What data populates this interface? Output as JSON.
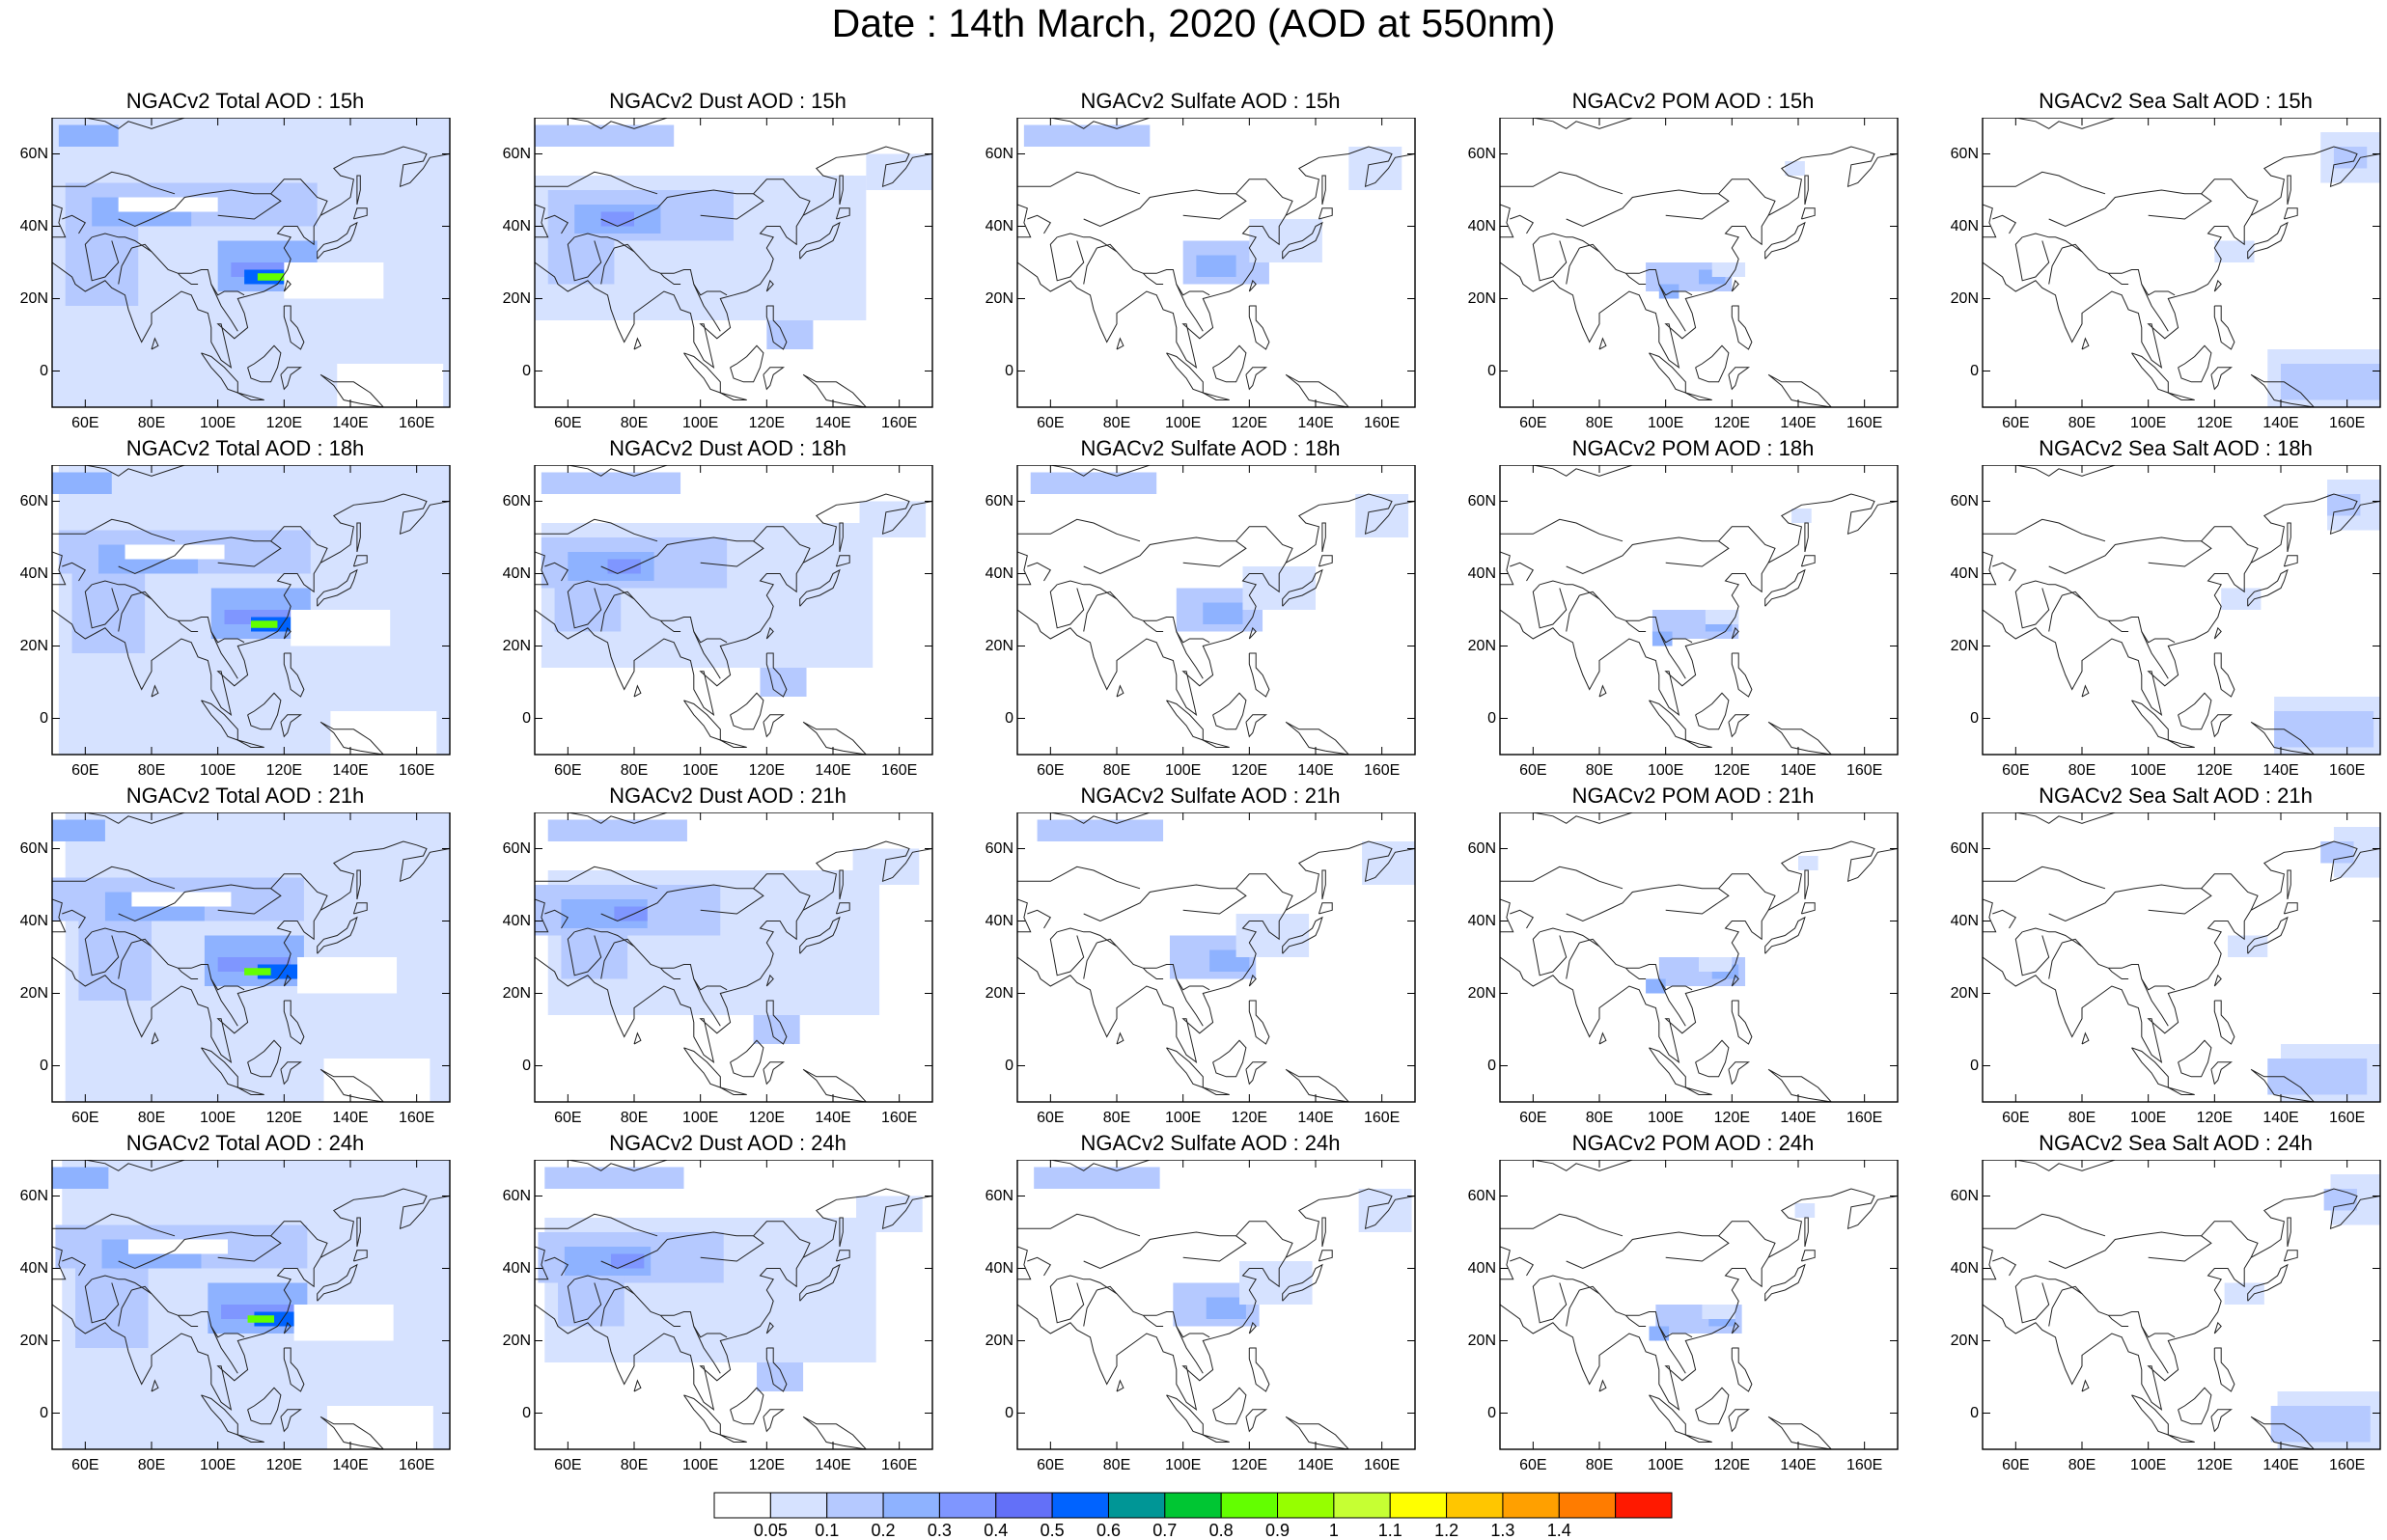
{
  "title": "Date : 14th March, 2020 (AOD at 550nm)",
  "panels": [
    {
      "title": "NGACv2 Total AOD : 15h",
      "species": "total"
    },
    {
      "title": "NGACv2 Dust AOD : 15h",
      "species": "dust"
    },
    {
      "title": "NGACv2 Sulfate AOD : 15h",
      "species": "sulfate"
    },
    {
      "title": "NGACv2 POM AOD : 15h",
      "species": "pom"
    },
    {
      "title": "NGACv2 Sea Salt AOD : 15h",
      "species": "seasalt"
    },
    {
      "title": "NGACv2 Total AOD : 18h",
      "species": "total"
    },
    {
      "title": "NGACv2 Dust AOD : 18h",
      "species": "dust"
    },
    {
      "title": "NGACv2 Sulfate AOD : 18h",
      "species": "sulfate"
    },
    {
      "title": "NGACv2 POM AOD : 18h",
      "species": "pom"
    },
    {
      "title": "NGACv2 Sea Salt AOD : 18h",
      "species": "seasalt"
    },
    {
      "title": "NGACv2 Total AOD : 21h",
      "species": "total"
    },
    {
      "title": "NGACv2 Dust AOD : 21h",
      "species": "dust"
    },
    {
      "title": "NGACv2 Sulfate AOD : 21h",
      "species": "sulfate"
    },
    {
      "title": "NGACv2 POM AOD : 21h",
      "species": "pom"
    },
    {
      "title": "NGACv2 Sea Salt AOD : 21h",
      "species": "seasalt"
    },
    {
      "title": "NGACv2 Total AOD : 24h",
      "species": "total"
    },
    {
      "title": "NGACv2 Dust AOD : 24h",
      "species": "dust"
    },
    {
      "title": "NGACv2 Sulfate AOD : 24h",
      "species": "sulfate"
    },
    {
      "title": "NGACv2 POM AOD : 24h",
      "species": "pom"
    },
    {
      "title": "NGACv2 Sea Salt  AOD : 24h",
      "species": "seasalt"
    }
  ],
  "axes": {
    "x_ticks": [
      "60E",
      "80E",
      "100E",
      "120E",
      "140E",
      "160E"
    ],
    "y_ticks": [
      "60N",
      "40N",
      "20N",
      "0"
    ],
    "lon_range": [
      50,
      170
    ],
    "lat_range": [
      -10,
      70
    ]
  },
  "colorbar": {
    "labels": [
      "0.05",
      "0.1",
      "0.2",
      "0.3",
      "0.4",
      "0.5",
      "0.6",
      "0.7",
      "0.8",
      "0.9",
      "1",
      "1.1",
      "1.2",
      "1.3",
      "1.4"
    ],
    "colors": [
      "#ffffff",
      "#d6e2ff",
      "#b5c9ff",
      "#8eb2ff",
      "#7f96ff",
      "#6370f8",
      "#0063ff",
      "#009696",
      "#00c633",
      "#63ff00",
      "#96ff00",
      "#c6ff33",
      "#ffff00",
      "#ffc600",
      "#ffa000",
      "#ff7c00",
      "#ff1900"
    ]
  }
}
